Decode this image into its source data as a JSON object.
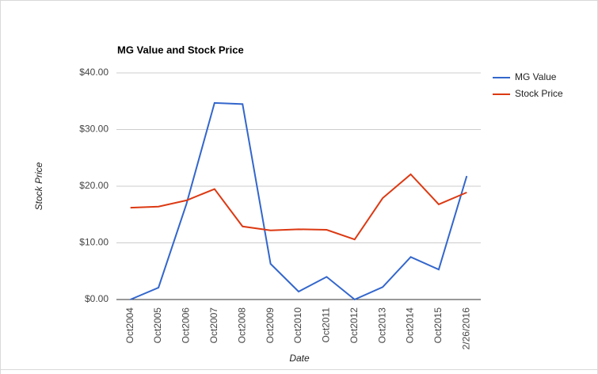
{
  "chart_data": {
    "type": "line",
    "title": "MG Value and Stock Price",
    "x_label": "Date",
    "y_label": "Stock Price",
    "categories": [
      "Oct2004",
      "Oct2005",
      "Oct2006",
      "Oct2007",
      "Oct2008",
      "Oct2009",
      "Oct2010",
      "Oct2011",
      "Oct2012",
      "Oct2013",
      "Oct2014",
      "Oct2015",
      "2/26/2016"
    ],
    "series": [
      {
        "name": "MG Value",
        "color": "#3366cc",
        "values": [
          0,
          2.1,
          16.9,
          34.7,
          34.5,
          6.3,
          1.4,
          4.0,
          0,
          2.2,
          7.5,
          5.3,
          21.8
        ]
      },
      {
        "name": "Stock Price",
        "color": "#dc3912",
        "values": [
          16.2,
          16.4,
          17.5,
          19.5,
          12.9,
          12.2,
          12.4,
          12.3,
          10.6,
          17.9,
          22.1,
          16.8,
          18.9
        ]
      }
    ],
    "ylim": [
      0,
      40
    ],
    "yticks": [
      {
        "value": 0,
        "label": "$0.00"
      },
      {
        "value": 10,
        "label": "$10.00"
      },
      {
        "value": 20,
        "label": "$20.00"
      },
      {
        "value": 30,
        "label": "$30.00"
      },
      {
        "value": 40,
        "label": "$40.00"
      }
    ],
    "grid": true,
    "legend": "right"
  }
}
